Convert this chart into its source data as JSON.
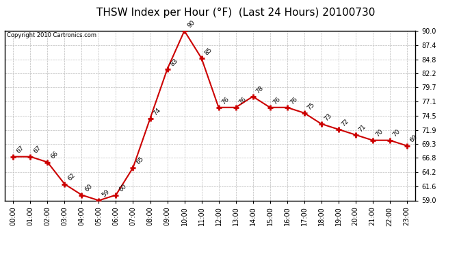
{
  "title": "THSW Index per Hour (°F)  (Last 24 Hours) 20100730",
  "copyright": "Copyright 2010 Cartronics.com",
  "hours": [
    "00:00",
    "01:00",
    "02:00",
    "03:00",
    "04:00",
    "05:00",
    "06:00",
    "07:00",
    "08:00",
    "09:00",
    "10:00",
    "11:00",
    "12:00",
    "13:00",
    "14:00",
    "15:00",
    "16:00",
    "17:00",
    "18:00",
    "19:00",
    "20:00",
    "21:00",
    "22:00",
    "23:00"
  ],
  "values": [
    67,
    67,
    66,
    62,
    60,
    59,
    60,
    65,
    74,
    83,
    90,
    85,
    76,
    76,
    78,
    76,
    76,
    75,
    73,
    72,
    71,
    70,
    70,
    69
  ],
  "ylim": [
    59.0,
    90.0
  ],
  "yticks": [
    59.0,
    61.6,
    64.2,
    66.8,
    69.3,
    71.9,
    74.5,
    77.1,
    79.7,
    82.2,
    84.8,
    87.4,
    90.0
  ],
  "line_color": "#cc0000",
  "marker_color": "#cc0000",
  "bg_color": "#ffffff",
  "grid_color": "#bbbbbb",
  "title_fontsize": 11,
  "label_fontsize": 7,
  "annotation_fontsize": 6.5
}
